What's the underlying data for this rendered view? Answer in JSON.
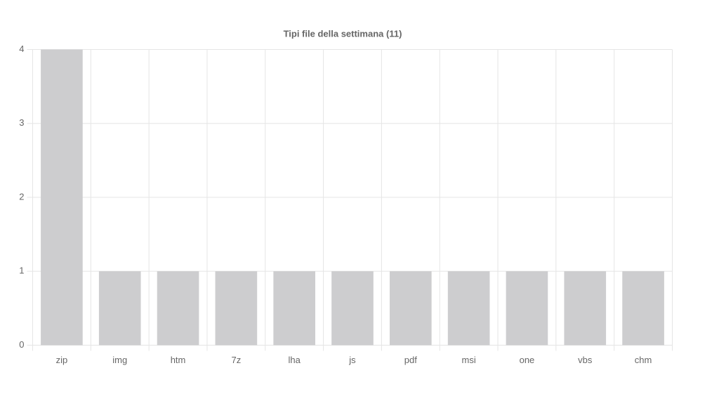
{
  "chart_data": {
    "type": "bar",
    "title": "Tipi file della settimana (11)",
    "categories": [
      "zip",
      "img",
      "htm",
      "7z",
      "lha",
      "js",
      "pdf",
      "msi",
      "one",
      "vbs",
      "chm"
    ],
    "values": [
      4,
      1,
      1,
      1,
      1,
      1,
      1,
      1,
      1,
      1,
      1
    ],
    "color": "#cdcdcf",
    "ylim": [
      0,
      4
    ],
    "yticks": [
      0,
      1,
      2,
      3,
      4
    ],
    "grid": true
  }
}
